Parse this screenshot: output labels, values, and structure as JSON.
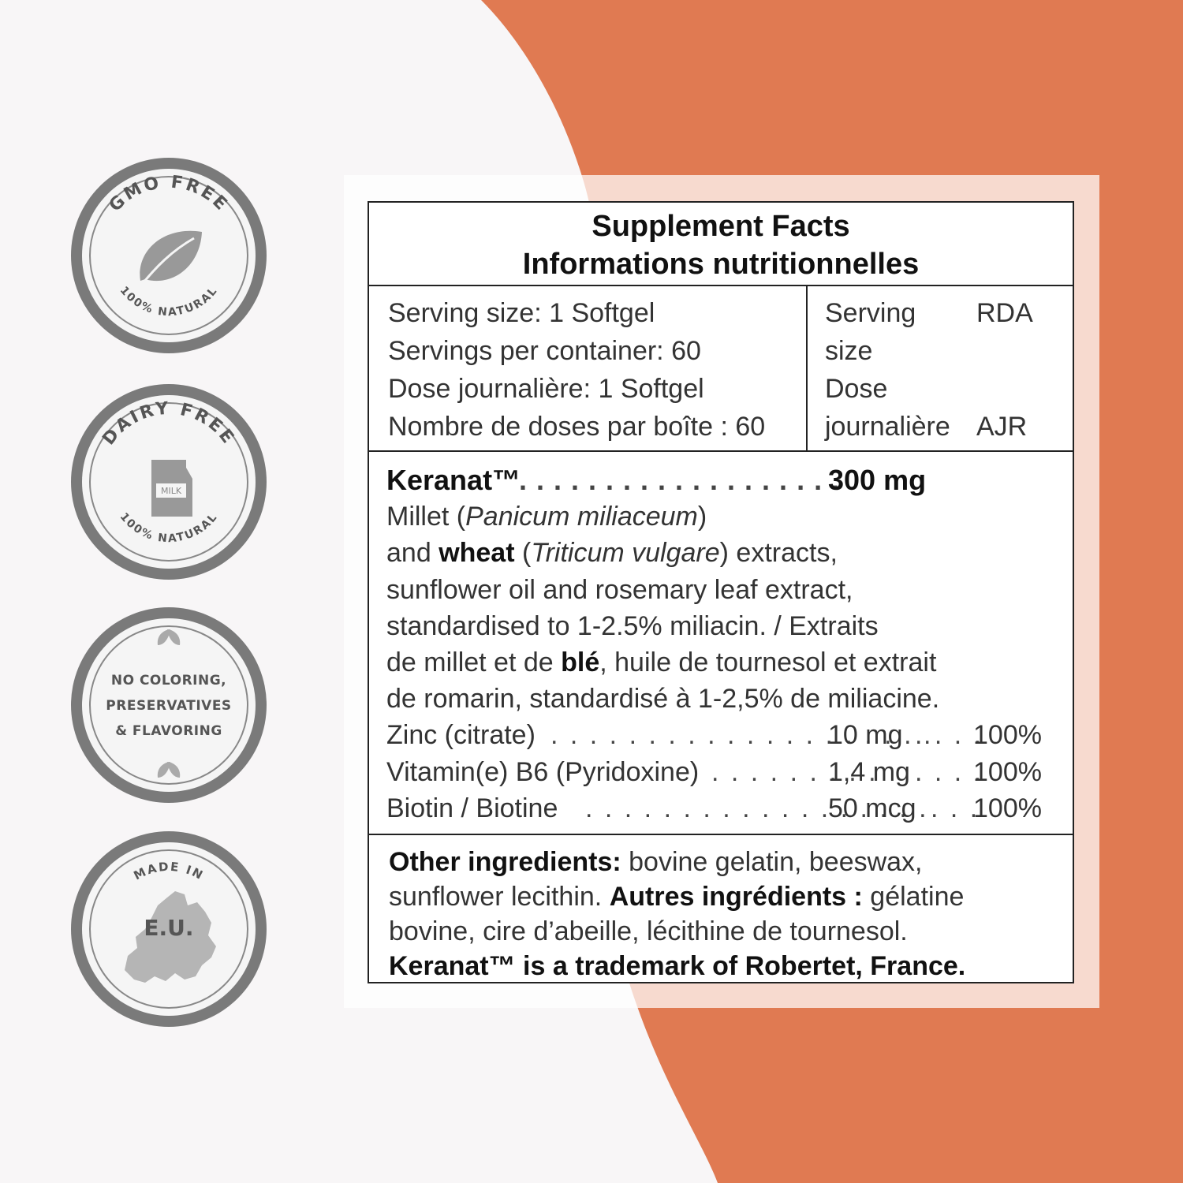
{
  "colors": {
    "background": "#f8f6f7",
    "accent": "#e07a52",
    "badge_gray": "#7a7a7a"
  },
  "badges": [
    {
      "top_text": "GMO FREE",
      "bottom_text": "100% NATURAL",
      "icon": "leaf-icon"
    },
    {
      "top_text": "DAIRY FREE",
      "bottom_text": "100% NATURAL",
      "icon": "milk-carton-icon",
      "icon_label": "MILK"
    },
    {
      "lines": [
        "NO COLORING,",
        "PRESERVATIVES",
        "& FLAVORING"
      ],
      "icon": "leaves-icon"
    },
    {
      "top_text": "MADE IN",
      "center_text": "E.U.",
      "icon": "europe-map-icon"
    }
  ],
  "label": {
    "title_en": "Supplement Facts",
    "title_fr": "Informations nutritionnelles",
    "serving_lines": [
      "Serving size: 1 Softgel",
      "Servings per container: 60",
      "Dose journalière: 1 Softgel",
      "Nombre de doses par boîte : 60"
    ],
    "col_serving": [
      "Serving",
      "size",
      "Dose",
      "journalière"
    ],
    "col_rda": "RDA",
    "col_ajr": "AJR",
    "keranat_name": "Keranat™",
    "keranat_dots": " . . . . . . . . . . . . . . . . . . .",
    "keranat_amount": "300 mg",
    "desc": {
      "l1_a": "Millet (",
      "l1_i": "Panicum miliaceum",
      "l1_b": ")",
      "l2_a": "and ",
      "l2_b": "wheat",
      "l2_c": " (",
      "l2_i": "Triticum vulgare",
      "l2_d": ") extracts,",
      "l3": "sunflower oil and rosemary leaf extract,",
      "l4": "standardised to 1-2.5% miliacin. / Extraits",
      "l5_a": "de millet et de ",
      "l5_b": "blé",
      "l5_c": ", huile de tournesol et extrait",
      "l6": "de romarin, standardisé à 1-2,5% de miliacine."
    },
    "nutrients": [
      {
        "name": "Zinc (citrate)",
        "dots1": ". . . . . . . . . . . . . . . . . . . .",
        "amount": "10 mg",
        "dots2": ". . . .",
        "pct": "100%"
      },
      {
        "name": "Vitamin(e) B6 (Pyridoxine)",
        "dots1": ". . . . . . . . .",
        "amount": "1,4 mg",
        "dots2": ". . . .",
        "pct": "100%"
      },
      {
        "name": "Biotin / Biotine",
        "dots1": ". . . . . . . . . . . . . . . . . .",
        "amount": "50 mcg",
        "dots2": ". . .",
        "pct": "100%"
      }
    ],
    "other": {
      "label_en": "Other ingredients:",
      "text_en1": " bovine gelatin, beeswax,",
      "text_en2": "sunflower lecithin. ",
      "label_fr": "Autres ingrédients :",
      "text_fr1": " gélatine",
      "text_fr2": "bovine, cire d’abeille, lécithine de tournesol.",
      "trademark": "Keranat™ is a trademark of Robertet, France."
    }
  }
}
